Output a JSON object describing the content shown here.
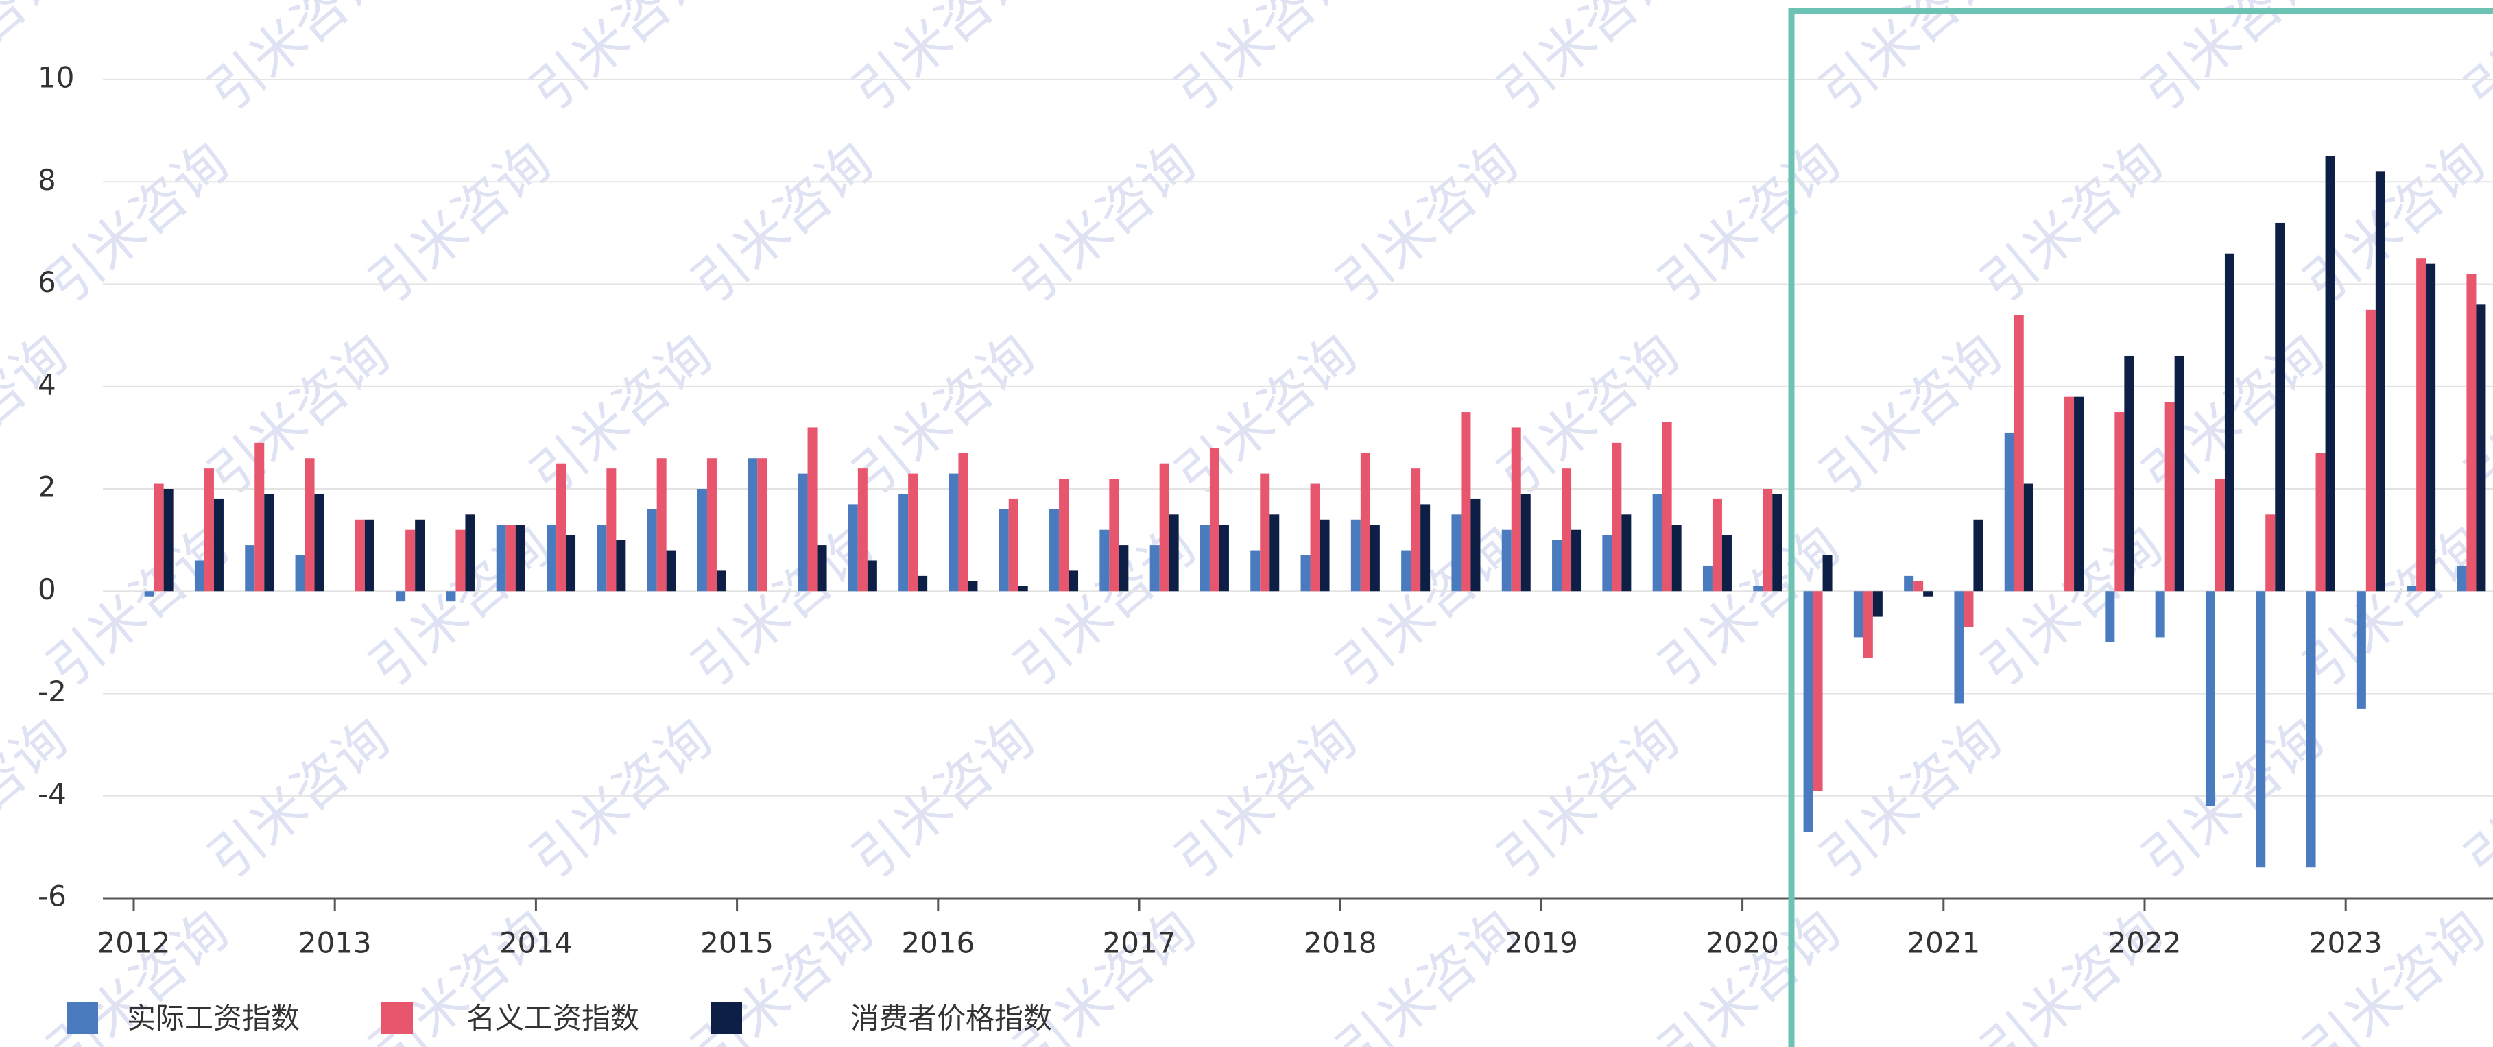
{
  "chart_data": {
    "type": "bar",
    "categories": [
      "2012",
      null,
      null,
      null,
      "2013",
      null,
      null,
      null,
      "2014",
      null,
      null,
      null,
      "2015",
      null,
      null,
      null,
      "2016",
      null,
      null,
      null,
      "2017",
      null,
      null,
      null,
      "2018",
      null,
      null,
      null,
      "2019",
      null,
      null,
      null,
      "2020",
      null,
      null,
      null,
      "2021",
      null,
      null,
      null,
      "2022",
      null,
      null,
      null,
      "2023",
      null,
      null
    ],
    "series": [
      {
        "name": "实际工资指数",
        "color": "#4a7bbf",
        "values": [
          -0.1,
          0.6,
          0.9,
          0.7,
          0,
          -0.2,
          -0.2,
          1.3,
          1.3,
          1.3,
          1.6,
          2.0,
          2.6,
          2.3,
          1.7,
          1.9,
          2.3,
          1.6,
          1.6,
          1.2,
          0.9,
          1.3,
          0.8,
          0.7,
          1.4,
          0.8,
          1.5,
          1.2,
          1.0,
          1.1,
          1.9,
          0.5,
          0.1,
          -4.7,
          -0.9,
          0.3,
          -2.2,
          3.1,
          0,
          -1.0,
          -0.9,
          -4.2,
          -5.4,
          -5.4,
          -2.3,
          0.1,
          0.5
        ]
      },
      {
        "name": "名义工资指数",
        "color": "#e8566d",
        "values": [
          2.1,
          2.4,
          2.9,
          2.6,
          1.4,
          1.2,
          1.2,
          1.3,
          2.5,
          2.4,
          2.6,
          2.6,
          2.6,
          3.2,
          2.4,
          2.3,
          2.7,
          1.8,
          2.2,
          2.2,
          2.5,
          2.8,
          2.3,
          2.1,
          2.7,
          2.4,
          3.5,
          3.2,
          2.4,
          2.9,
          3.3,
          1.8,
          2.0,
          -3.9,
          -1.3,
          0.2,
          -0.7,
          5.4,
          3.8,
          3.5,
          3.7,
          2.2,
          1.5,
          2.7,
          5.5,
          6.5,
          6.2
        ]
      },
      {
        "name": "消费者价格指数",
        "color": "#0d1f45",
        "values": [
          2.0,
          1.8,
          1.9,
          1.9,
          1.4,
          1.4,
          1.5,
          1.3,
          1.1,
          1.0,
          0.8,
          0.4,
          0,
          0.9,
          0.6,
          0.3,
          0.2,
          0.1,
          0.4,
          0.9,
          1.5,
          1.3,
          1.5,
          1.4,
          1.3,
          1.7,
          1.8,
          1.9,
          1.2,
          1.5,
          1.3,
          1.1,
          1.9,
          0.7,
          -0.5,
          -0.1,
          1.4,
          2.1,
          3.8,
          4.6,
          4.6,
          6.6,
          7.2,
          8.5,
          8.2,
          6.4,
          5.6
        ]
      }
    ],
    "ylim": [
      -6,
      10
    ],
    "yticks": [
      -6,
      -4,
      -2,
      0,
      2,
      4,
      6,
      8,
      10
    ],
    "grid": true,
    "watermark": "引米咨询"
  }
}
